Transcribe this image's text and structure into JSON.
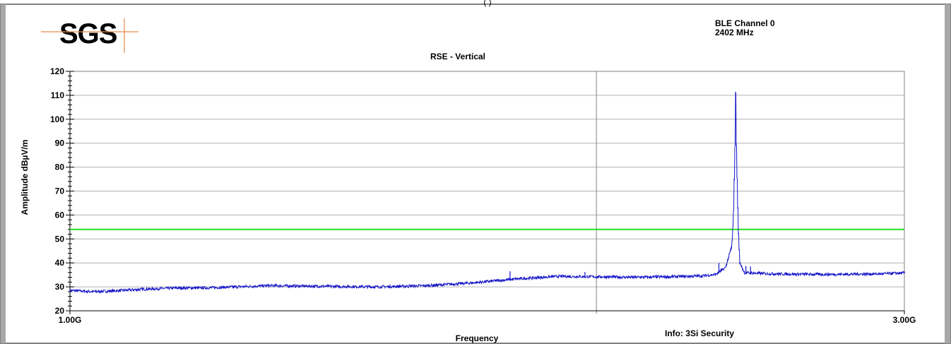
{
  "header": {
    "channel_line1": "BLE Channel 0",
    "channel_line2": "2402 MHz",
    "top_cut_text": "(                )"
  },
  "logo": {
    "text": "SGS"
  },
  "chart_data": {
    "type": "line",
    "title": "RSE - Vertical",
    "xlabel": "Frequency",
    "ylabel": "Amplitude dBµV/m",
    "info": "Info: 3Si Security",
    "x_scale": "log",
    "x_unit": "GHz",
    "xlim": [
      1.0,
      3.0
    ],
    "x_tick_labels": [
      "1.00G",
      "3.00G"
    ],
    "ylim": [
      20,
      120
    ],
    "y_ticks": [
      20,
      30,
      40,
      50,
      60,
      70,
      80,
      90,
      100,
      110,
      120
    ],
    "grid": true,
    "limit_line": {
      "value": 54,
      "color": "#22dd22"
    },
    "series": [
      {
        "color": "#1515c8",
        "x": [
          1.0,
          1.03,
          1.06,
          1.1,
          1.15,
          1.2,
          1.3,
          1.4,
          1.5,
          1.6,
          1.7,
          1.8,
          1.9,
          2.0,
          2.1,
          2.2,
          2.3,
          2.34,
          2.37,
          2.39,
          2.395,
          2.4,
          2.402,
          2.404,
          2.41,
          2.415,
          2.43,
          2.5,
          2.6,
          2.7,
          2.8,
          2.9,
          3.0
        ],
        "values": [
          28.5,
          28.0,
          28.3,
          29.0,
          29.5,
          29.6,
          30.5,
          30.2,
          30.0,
          30.5,
          31.7,
          33.3,
          34.4,
          34.2,
          34.0,
          34.2,
          34.6,
          35.2,
          38.0,
          47.0,
          60.0,
          90.0,
          111.5,
          90.0,
          55.0,
          40.0,
          35.9,
          35.5,
          35.3,
          35.2,
          35.3,
          35.4,
          35.8
        ]
      }
    ],
    "spurs": [
      {
        "x": 1.785,
        "y": 36.5
      },
      {
        "x": 1.97,
        "y": 36.2
      },
      {
        "x": 2.35,
        "y": 40.0
      },
      {
        "x": 2.435,
        "y": 38.7
      },
      {
        "x": 2.45,
        "y": 38.5
      }
    ]
  },
  "colors": {
    "frame_border": "#808080",
    "grid": "#b0b0b0",
    "trace": "#1515c8",
    "limit": "#22dd22",
    "logo_gray": "#8a8a8a",
    "logo_orange": "#e98a48"
  }
}
